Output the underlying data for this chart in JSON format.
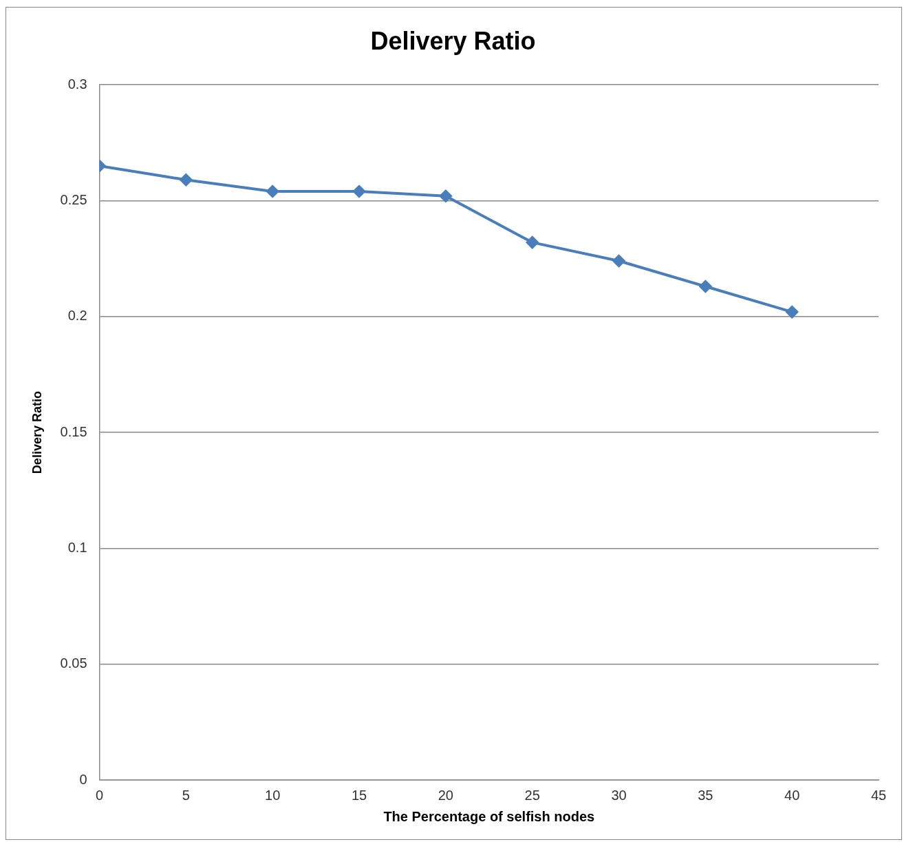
{
  "chart_data": {
    "type": "line",
    "title": "Delivery Ratio",
    "xlabel": "The Percentage of selfish nodes",
    "ylabel": "Delivery Ratio",
    "x": [
      0,
      5,
      10,
      15,
      20,
      25,
      30,
      35,
      40
    ],
    "series": [
      {
        "color": "#4a7ebb",
        "values": [
          0.265,
          0.259,
          0.254,
          0.254,
          0.252,
          0.232,
          0.224,
          0.213,
          0.202
        ]
      }
    ],
    "xlim": [
      0,
      45
    ],
    "xticks": [
      0,
      5,
      10,
      15,
      20,
      25,
      30,
      35,
      40,
      45
    ],
    "ylim": [
      0,
      0.3
    ],
    "yticks": [
      0,
      0.05,
      0.1,
      0.15,
      0.2,
      0.25,
      0.3
    ],
    "grid": "y",
    "legend": false,
    "marker": "diamond",
    "line_style": "solid"
  }
}
